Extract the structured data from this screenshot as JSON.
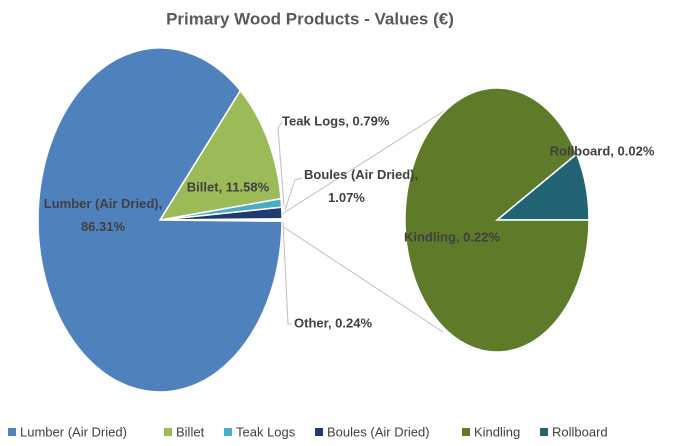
{
  "chart_data": {
    "type": "pie-of-pie",
    "title": "Primary Wood Products - Values (€)",
    "main": {
      "categories": [
        "Lumber (Air Dried)",
        "Billet",
        "Teak Logs",
        "Boules (Air Dried)"
      ],
      "values": [
        86.31,
        11.58,
        0.79,
        1.07
      ],
      "value_labels": [
        "Lumber (Air Dried), 86.31%",
        "Billet, 11.58%",
        "Teak Logs, 0.79%",
        "Boules (Air Dried), 1.07%"
      ],
      "colors": [
        "#4f81bd",
        "#9bbb59",
        "#4bacc6",
        "#1f3b6e"
      ]
    },
    "other": {
      "value": 0.24,
      "value_label": "Other, 0.24%"
    },
    "secondary": {
      "categories": [
        "Kindling",
        "Rollboard"
      ],
      "values": [
        0.22,
        0.02
      ],
      "value_labels": [
        "Kindling, 0.22%",
        "Rollboard, 0.02%"
      ],
      "colors": [
        "#5e7b2a",
        "#236474"
      ]
    },
    "legend": "bottom"
  }
}
